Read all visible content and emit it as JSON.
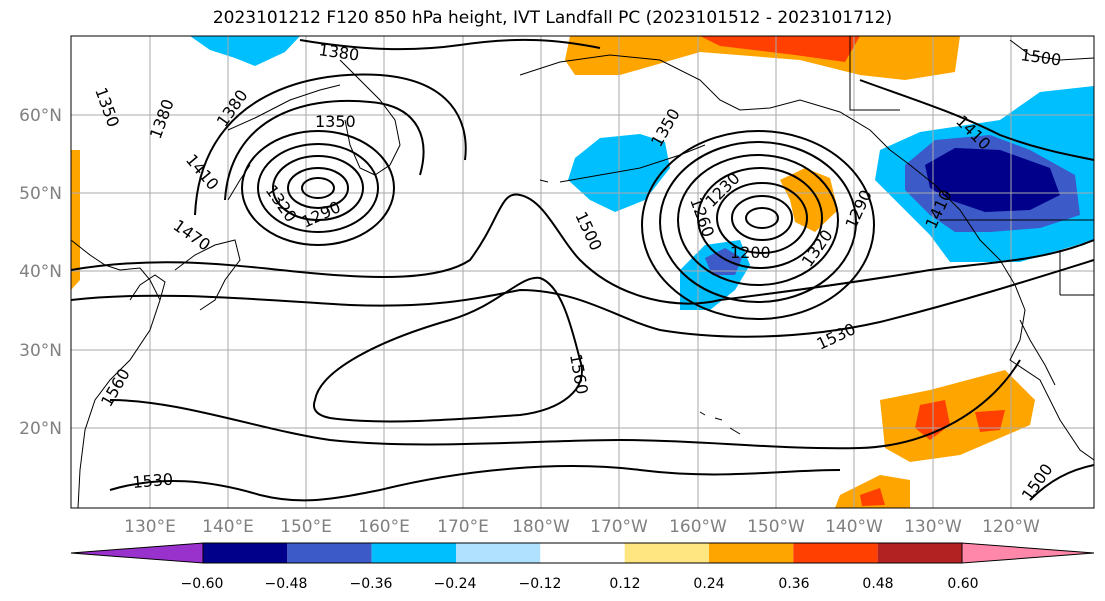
{
  "title": "2023101212 F120 850 hPa height, IVT Landfall PC (2023101512 - 2023101712)",
  "lon_ticks": [
    "130°E",
    "140°E",
    "150°E",
    "160°E",
    "170°E",
    "180°W",
    "170°W",
    "160°W",
    "150°W",
    "140°W",
    "130°W",
    "120°W"
  ],
  "lat_ticks": [
    "60°N",
    "50°N",
    "40°N",
    "30°N",
    "20°N"
  ],
  "contour_labels": [
    "1350",
    "1380",
    "1380",
    "1380",
    "1350",
    "1410",
    "1320",
    "1290",
    "1470",
    "1500",
    "1560",
    "1560",
    "1530",
    "1500",
    "1350",
    "1230",
    "1260",
    "1200",
    "1320",
    "1290",
    "1410",
    "1410",
    "1530",
    "1500"
  ],
  "colorbar": {
    "ticks": [
      "−0.60",
      "−0.48",
      "−0.36",
      "−0.24",
      "−0.12",
      "0.12",
      "0.24",
      "0.36",
      "0.48",
      "0.60"
    ],
    "colors": [
      "#9932cc",
      "#00008b",
      "#3c5ac8",
      "#00bfff",
      "#b0e2ff",
      "#ffffff",
      "#ffe680",
      "#ffa500",
      "#ff4000",
      "#b22222",
      "#ff88aa"
    ]
  }
}
